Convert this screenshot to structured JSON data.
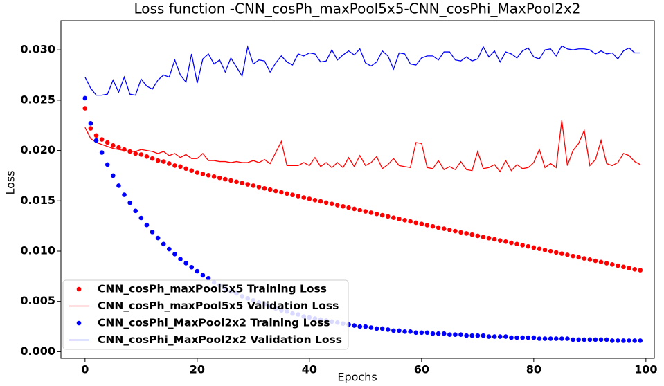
{
  "chart_data": {
    "type": "line",
    "title": "Loss function -CNN_cosPh_maxPool5x5-CNN_cosPhi_MaxPool2x2",
    "xlabel": "Epochs",
    "ylabel": "Loss",
    "x": [
      0,
      1,
      2,
      3,
      4,
      5,
      6,
      7,
      8,
      9,
      10,
      11,
      12,
      13,
      14,
      15,
      16,
      17,
      18,
      19,
      20,
      21,
      22,
      23,
      24,
      25,
      26,
      27,
      28,
      29,
      30,
      31,
      32,
      33,
      34,
      35,
      36,
      37,
      38,
      39,
      40,
      41,
      42,
      43,
      44,
      45,
      46,
      47,
      48,
      49,
      50,
      51,
      52,
      53,
      54,
      55,
      56,
      57,
      58,
      59,
      60,
      61,
      62,
      63,
      64,
      65,
      66,
      67,
      68,
      69,
      70,
      71,
      72,
      73,
      74,
      75,
      76,
      77,
      78,
      79,
      80,
      81,
      82,
      83,
      84,
      85,
      86,
      87,
      88,
      89,
      90,
      91,
      92,
      93,
      94,
      95,
      96,
      97,
      98,
      99
    ],
    "xlim": [
      -4.3,
      101.5
    ],
    "xticks": [
      0,
      20,
      40,
      60,
      80,
      100
    ],
    "ylim": [
      -0.00066,
      0.0329
    ],
    "yticks": [
      {
        "value": 0,
        "label": "0.000"
      },
      {
        "value": 0.005,
        "label": "0.005"
      },
      {
        "value": 0.01,
        "label": "0.010"
      },
      {
        "value": 0.015,
        "label": "0.015"
      },
      {
        "value": 0.02,
        "label": "0.020"
      },
      {
        "value": 0.025,
        "label": "0.025"
      },
      {
        "value": 0.03,
        "label": "0.030"
      }
    ],
    "legend": "lower left",
    "series": [
      {
        "name": "CNN_cosPh_maxPool5x5 Training Loss",
        "color": "#ff0000",
        "style": "markers",
        "values": [
          0.0242,
          0.0222,
          0.0215,
          0.0211,
          0.0208,
          0.0205,
          0.0203,
          0.0201,
          0.0199,
          0.0197,
          0.0196,
          0.0194,
          0.0192,
          0.019,
          0.0189,
          0.0187,
          0.0185,
          0.0184,
          0.0182,
          0.018,
          0.0178,
          0.01767,
          0.01754,
          0.01741,
          0.01728,
          0.01715,
          0.01702,
          0.01689,
          0.01676,
          0.01663,
          0.0165,
          0.01637,
          0.01624,
          0.01611,
          0.01598,
          0.01585,
          0.01572,
          0.01559,
          0.01546,
          0.01533,
          0.0152,
          0.01507,
          0.01495,
          0.01482,
          0.0147,
          0.01457,
          0.01445,
          0.01432,
          0.0142,
          0.01407,
          0.01395,
          0.01382,
          0.0137,
          0.01357,
          0.01345,
          0.01332,
          0.0132,
          0.01307,
          0.01295,
          0.01282,
          0.0127,
          0.01258,
          0.01246,
          0.01234,
          0.01223,
          0.01211,
          0.01199,
          0.01187,
          0.01176,
          0.01164,
          0.01152,
          0.0114,
          0.01129,
          0.01117,
          0.01105,
          0.01094,
          0.01082,
          0.0107,
          0.01059,
          0.01047,
          0.01035,
          0.01023,
          0.01011,
          0.00999,
          0.00987,
          0.00975,
          0.00963,
          0.00951,
          0.00939,
          0.00927,
          0.00915,
          0.00903,
          0.00891,
          0.00879,
          0.00867,
          0.00855,
          0.00843,
          0.00831,
          0.00819,
          0.0081
        ]
      },
      {
        "name": "CNN_cosPh_maxPool5x5 Validation Loss",
        "color": "#ff0000",
        "style": "line",
        "values": [
          0.0223,
          0.0212,
          0.0208,
          0.0206,
          0.0204,
          0.0202,
          0.0201,
          0.02,
          0.0199,
          0.0199,
          0.0201,
          0.02,
          0.0199,
          0.0197,
          0.0199,
          0.0195,
          0.0197,
          0.0193,
          0.0196,
          0.0192,
          0.0192,
          0.0197,
          0.019,
          0.019,
          0.0189,
          0.0189,
          0.0188,
          0.0189,
          0.0188,
          0.0188,
          0.019,
          0.0188,
          0.0191,
          0.0187,
          0.0198,
          0.0209,
          0.0185,
          0.0185,
          0.0185,
          0.0188,
          0.0185,
          0.0193,
          0.0184,
          0.0188,
          0.0183,
          0.0188,
          0.0183,
          0.0193,
          0.0184,
          0.0195,
          0.0185,
          0.0188,
          0.0194,
          0.0182,
          0.0186,
          0.0192,
          0.0185,
          0.0184,
          0.0183,
          0.0208,
          0.0207,
          0.0183,
          0.0182,
          0.019,
          0.0181,
          0.0184,
          0.0181,
          0.0189,
          0.0181,
          0.018,
          0.0199,
          0.0182,
          0.0183,
          0.0186,
          0.0179,
          0.019,
          0.018,
          0.0186,
          0.0182,
          0.0183,
          0.0188,
          0.0201,
          0.0183,
          0.0187,
          0.0183,
          0.023,
          0.0185,
          0.02,
          0.0207,
          0.022,
          0.0185,
          0.0191,
          0.021,
          0.0187,
          0.0185,
          0.0188,
          0.0197,
          0.0195,
          0.0189,
          0.0186
        ]
      },
      {
        "name": "CNN_cosPhi_MaxPool2x2 Training Loss",
        "color": "#0000ff",
        "style": "markers",
        "values": [
          0.0252,
          0.0227,
          0.021,
          0.0198,
          0.0186,
          0.0175,
          0.0165,
          0.0156,
          0.0148,
          0.014,
          0.0133,
          0.0126,
          0.0119,
          0.0113,
          0.0107,
          0.0102,
          0.0097,
          0.0092,
          0.0088,
          0.0084,
          0.008,
          0.0076,
          0.0073,
          0.0069,
          0.0066,
          0.0063,
          0.006,
          0.0058,
          0.0055,
          0.0053,
          0.0051,
          0.0049,
          0.0047,
          0.0045,
          0.0043,
          0.0041,
          0.004,
          0.0038,
          0.0037,
          0.0035,
          0.0034,
          0.0033,
          0.0032,
          0.0031,
          0.003,
          0.0029,
          0.0028,
          0.0027,
          0.0026,
          0.0025,
          0.0025,
          0.0024,
          0.0023,
          0.0023,
          0.0022,
          0.0021,
          0.0021,
          0.002,
          0.002,
          0.0019,
          0.0019,
          0.0019,
          0.0018,
          0.0018,
          0.0018,
          0.0017,
          0.0017,
          0.0017,
          0.0016,
          0.0016,
          0.0016,
          0.0016,
          0.0015,
          0.0015,
          0.0015,
          0.0015,
          0.0014,
          0.0014,
          0.0014,
          0.0014,
          0.0014,
          0.0013,
          0.0013,
          0.0013,
          0.0013,
          0.0013,
          0.0013,
          0.0012,
          0.0012,
          0.0012,
          0.0012,
          0.0012,
          0.0012,
          0.0012,
          0.0011,
          0.0011,
          0.0011,
          0.0011,
          0.0011,
          0.0011
        ]
      },
      {
        "name": "CNN_cosPhi_MaxPool2x2 Validation Loss",
        "color": "#0000ff",
        "style": "line",
        "values": [
          0.0273,
          0.0262,
          0.0255,
          0.0255,
          0.0256,
          0.027,
          0.0258,
          0.0273,
          0.0256,
          0.0255,
          0.0271,
          0.0264,
          0.0261,
          0.027,
          0.0275,
          0.0273,
          0.029,
          0.0275,
          0.0268,
          0.0296,
          0.0267,
          0.0291,
          0.0296,
          0.0286,
          0.029,
          0.0278,
          0.0292,
          0.0283,
          0.0274,
          0.0303,
          0.0286,
          0.029,
          0.0289,
          0.0278,
          0.0287,
          0.0294,
          0.0288,
          0.0285,
          0.0296,
          0.0294,
          0.0297,
          0.0296,
          0.0288,
          0.0289,
          0.03,
          0.029,
          0.0295,
          0.0299,
          0.0295,
          0.0301,
          0.0287,
          0.0284,
          0.0288,
          0.0299,
          0.0294,
          0.0281,
          0.0297,
          0.0296,
          0.0286,
          0.0285,
          0.0292,
          0.0294,
          0.0294,
          0.029,
          0.0298,
          0.0298,
          0.029,
          0.0289,
          0.0293,
          0.0289,
          0.0291,
          0.0303,
          0.0293,
          0.0299,
          0.0288,
          0.0298,
          0.0296,
          0.0292,
          0.0299,
          0.0302,
          0.0293,
          0.0291,
          0.03,
          0.0301,
          0.0294,
          0.0304,
          0.0301,
          0.03,
          0.0301,
          0.0301,
          0.03,
          0.0296,
          0.0299,
          0.0296,
          0.0297,
          0.0291,
          0.0299,
          0.0302,
          0.0297,
          0.0297
        ]
      }
    ]
  }
}
